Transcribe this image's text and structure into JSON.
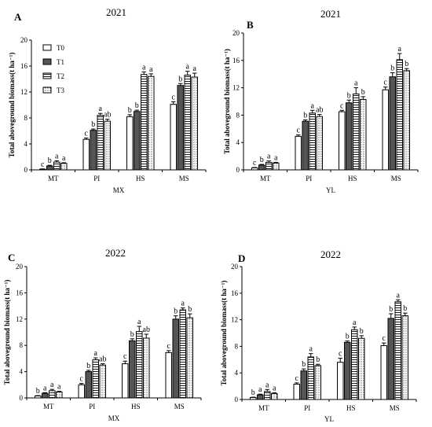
{
  "patterns": {
    "T0": "#ffffff",
    "T1": "#555555",
    "T2": "horizontal-stripes",
    "T3": "dots"
  },
  "legend": [
    "T0",
    "T1",
    "T2",
    "T3"
  ],
  "chart_data": [
    {
      "type": "bar",
      "panel": "A",
      "title": "2021",
      "xlabel": "MX",
      "ylabel": "Total aboveground biomass(t ha⁻¹)",
      "ylim": [
        0,
        20
      ],
      "yticks": [
        0,
        4,
        8,
        12,
        16,
        20
      ],
      "categories": [
        "MT",
        "PI",
        "HS",
        "MS"
      ],
      "series": [
        {
          "name": "T0",
          "values": [
            0.1,
            4.7,
            8.2,
            10.1
          ],
          "errors": [
            0.05,
            0.2,
            0.3,
            0.4
          ]
        },
        {
          "name": "T1",
          "values": [
            0.6,
            6.1,
            9.0,
            13.0
          ],
          "errors": [
            0.1,
            0.2,
            0.2,
            0.3
          ]
        },
        {
          "name": "T2",
          "values": [
            1.2,
            8.4,
            14.7,
            14.6
          ],
          "errors": [
            0.2,
            0.3,
            0.4,
            0.6
          ]
        },
        {
          "name": "T3",
          "values": [
            1.0,
            7.5,
            14.4,
            14.3
          ],
          "errors": [
            0.1,
            0.3,
            0.4,
            0.6
          ]
        }
      ],
      "labels": [
        [
          "c",
          "b",
          "a",
          "a"
        ],
        [
          "c",
          "b",
          "a",
          "ab"
        ],
        [
          "b",
          "b",
          "a",
          "a"
        ],
        [
          "c",
          "b",
          "a",
          "a"
        ]
      ]
    },
    {
      "type": "bar",
      "panel": "B",
      "title": "2021",
      "xlabel": "YL",
      "ylabel": "Total aboveground biomass(t ha⁻¹)",
      "ylim": [
        0,
        20
      ],
      "yticks": [
        0,
        4,
        8,
        12,
        16,
        20
      ],
      "categories": [
        "MT",
        "PI",
        "HS",
        "MS"
      ],
      "series": [
        {
          "name": "T0",
          "values": [
            0.3,
            4.9,
            8.5,
            11.7
          ],
          "errors": [
            0.05,
            0.2,
            0.2,
            0.4
          ]
        },
        {
          "name": "T1",
          "values": [
            0.7,
            7.1,
            9.8,
            13.6
          ],
          "errors": [
            0.1,
            0.2,
            0.4,
            0.6
          ]
        },
        {
          "name": "T2",
          "values": [
            1.1,
            8.3,
            11.1,
            16.1
          ],
          "errors": [
            0.2,
            0.4,
            0.9,
            0.9
          ]
        },
        {
          "name": "T3",
          "values": [
            1.0,
            7.8,
            10.3,
            14.5
          ],
          "errors": [
            0.1,
            0.3,
            0.4,
            0.3
          ]
        }
      ],
      "labels": [
        [
          "c",
          "b",
          "a",
          "a"
        ],
        [
          "c",
          "b",
          "a",
          "ab"
        ],
        [
          "c",
          "b",
          "a",
          "b"
        ],
        [
          "c",
          "b",
          "a",
          "b"
        ]
      ]
    },
    {
      "type": "bar",
      "panel": "C",
      "title": "2022",
      "xlabel": "MX",
      "ylabel": "Total aboveground biomass(t ha⁻¹)",
      "ylim": [
        0,
        20
      ],
      "yticks": [
        0,
        4,
        8,
        12,
        16,
        20
      ],
      "categories": [
        "MT",
        "PI",
        "HS",
        "MS"
      ],
      "series": [
        {
          "name": "T0",
          "values": [
            0.3,
            2.0,
            5.2,
            6.9
          ],
          "errors": [
            0.05,
            0.2,
            0.4,
            0.3
          ]
        },
        {
          "name": "T1",
          "values": [
            0.7,
            4.0,
            8.7,
            12.0
          ],
          "errors": [
            0.1,
            0.2,
            0.3,
            0.5
          ]
        },
        {
          "name": "T2",
          "values": [
            1.1,
            5.8,
            10.1,
            13.4
          ],
          "errors": [
            0.2,
            0.3,
            0.8,
            0.3
          ]
        },
        {
          "name": "T3",
          "values": [
            0.9,
            5.0,
            9.1,
            12.2
          ],
          "errors": [
            0.1,
            0.2,
            0.6,
            0.6
          ]
        }
      ],
      "labels": [
        [
          "b",
          "a",
          "a",
          "a"
        ],
        [
          "c",
          "b",
          "a",
          "ab"
        ],
        [
          "c",
          "b",
          "a",
          "ab"
        ],
        [
          "c",
          "b",
          "a",
          "b"
        ]
      ]
    },
    {
      "type": "bar",
      "panel": "D",
      "title": "2022",
      "xlabel": "YL",
      "ylabel": "Total aboveground biomass(t ha⁻¹)",
      "ylim": [
        0,
        20
      ],
      "yticks": [
        0,
        4,
        8,
        12,
        16,
        20
      ],
      "categories": [
        "MT",
        "PI",
        "HS",
        "MS"
      ],
      "series": [
        {
          "name": "T0",
          "values": [
            0.3,
            2.3,
            5.6,
            8.1
          ],
          "errors": [
            0.05,
            0.2,
            0.6,
            0.4
          ]
        },
        {
          "name": "T1",
          "values": [
            0.7,
            4.3,
            8.6,
            12.2
          ],
          "errors": [
            0.1,
            0.3,
            0.2,
            0.7
          ]
        },
        {
          "name": "T2",
          "values": [
            1.2,
            6.4,
            10.5,
            14.7
          ],
          "errors": [
            0.3,
            0.5,
            0.4,
            0.3
          ]
        },
        {
          "name": "T3",
          "values": [
            0.9,
            5.1,
            9.2,
            12.6
          ],
          "errors": [
            0.1,
            0.2,
            0.4,
            0.4
          ]
        }
      ],
      "labels": [
        [
          "b",
          "a",
          "a",
          "a"
        ],
        [
          "c",
          "b",
          "a",
          "b"
        ],
        [
          "c",
          "b",
          "a",
          "b"
        ],
        [
          "c",
          "b",
          "a",
          "b"
        ]
      ]
    }
  ]
}
